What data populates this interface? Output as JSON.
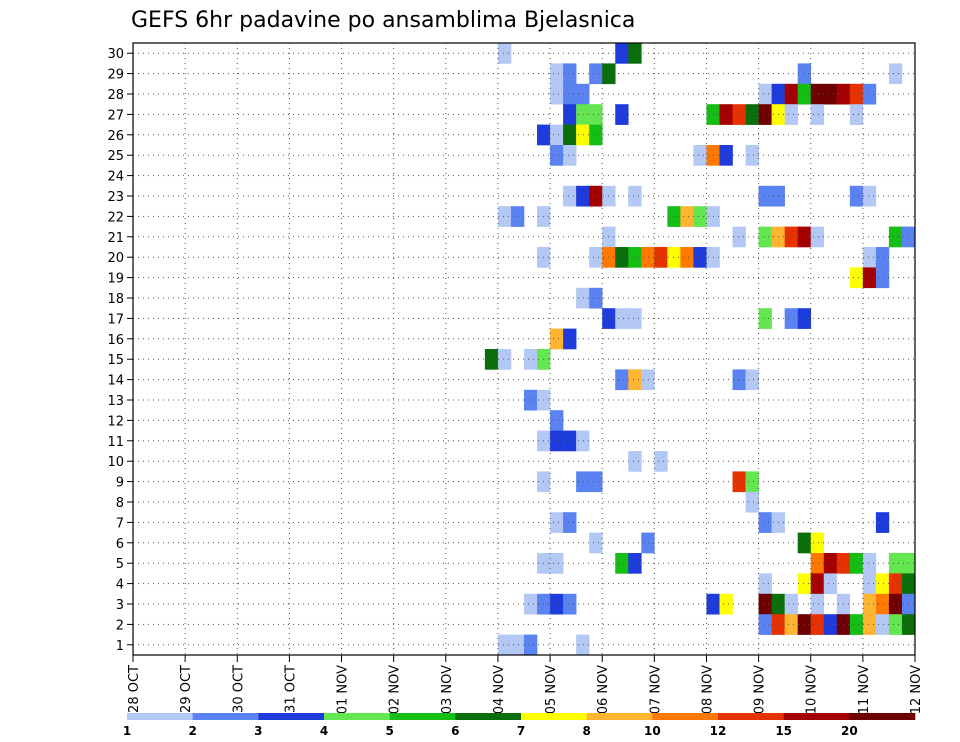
{
  "chart_data": {
    "type": "heatmap",
    "title": "GEFS 6hr padavine po ansamblima Bjelasnica",
    "xlabel": "",
    "ylabel": "",
    "x_ticks": [
      "28 OCT",
      "29 OCT",
      "30 OCT",
      "31 OCT",
      "01 NOV",
      "02 NOV",
      "03 NOV",
      "04 NOV",
      "05 NOV",
      "06 NOV",
      "07 NOV",
      "08 NOV",
      "09 NOV",
      "10 NOV",
      "11 NOV",
      "12 NOV"
    ],
    "x_step_hours": 6,
    "y_ticks": [
      1,
      2,
      3,
      4,
      5,
      6,
      7,
      8,
      9,
      10,
      11,
      12,
      13,
      14,
      15,
      16,
      17,
      18,
      19,
      20,
      21,
      22,
      23,
      24,
      25,
      26,
      27,
      28,
      29,
      30
    ],
    "grid": true,
    "colorbar": {
      "labels": [
        "1",
        "2",
        "3",
        "4",
        "5",
        "6",
        "7",
        "8",
        "10",
        "12",
        "15",
        "20"
      ],
      "colors": [
        "#b4c8f5",
        "#5a82f0",
        "#1e3cdc",
        "#64e650",
        "#14be14",
        "#0a6e0a",
        "#ffff00",
        "#ffb432",
        "#ff7800",
        "#e63200",
        "#a50000",
        "#6e0000"
      ]
    },
    "cells": [
      {
        "member": 30,
        "x": "04 NOV 00",
        "value": 1.5
      },
      {
        "member": 30,
        "x": "06 NOV 06",
        "value": 3.5
      },
      {
        "member": 30,
        "x": "06 NOV 12",
        "value": 6.5
      },
      {
        "member": 29,
        "x": "05 NOV 00",
        "value": 1.5
      },
      {
        "member": 29,
        "x": "05 NOV 06",
        "value": 2.5
      },
      {
        "member": 29,
        "x": "05 NOV 18",
        "value": 2.5
      },
      {
        "member": 29,
        "x": "06 NOV 00",
        "value": 6.5
      },
      {
        "member": 29,
        "x": "09 NOV 18",
        "value": 2.5
      },
      {
        "member": 29,
        "x": "11 NOV 12",
        "value": 1.5
      },
      {
        "member": 28,
        "x": "05 NOV 00",
        "value": 1.5
      },
      {
        "member": 28,
        "x": "05 NOV 06",
        "value": 2.5
      },
      {
        "member": 28,
        "x": "05 NOV 12",
        "value": 2.5
      },
      {
        "member": 28,
        "x": "09 NOV 00",
        "value": 1.5
      },
      {
        "member": 28,
        "x": "09 NOV 06",
        "value": 3.5
      },
      {
        "member": 28,
        "x": "09 NOV 12",
        "value": 17.5
      },
      {
        "member": 28,
        "x": "09 NOV 18",
        "value": 5.5
      },
      {
        "member": 28,
        "x": "10 NOV 00",
        "value": 25
      },
      {
        "member": 28,
        "x": "10 NOV 06",
        "value": 25
      },
      {
        "member": 28,
        "x": "10 NOV 12",
        "value": 17.5
      },
      {
        "member": 28,
        "x": "10 NOV 18",
        "value": 13.5
      },
      {
        "member": 28,
        "x": "11 NOV 00",
        "value": 2.5
      },
      {
        "member": 27,
        "x": "05 NOV 06",
        "value": 3.5
      },
      {
        "member": 27,
        "x": "05 NOV 12",
        "value": 4.5
      },
      {
        "member": 27,
        "x": "05 NOV 18",
        "value": 4.5
      },
      {
        "member": 27,
        "x": "06 NOV 06",
        "value": 3.5
      },
      {
        "member": 27,
        "x": "08 NOV 00",
        "value": 5.5
      },
      {
        "member": 27,
        "x": "08 NOV 06",
        "value": 17.5
      },
      {
        "member": 27,
        "x": "08 NOV 12",
        "value": 13.5
      },
      {
        "member": 27,
        "x": "08 NOV 18",
        "value": 6.5
      },
      {
        "member": 27,
        "x": "09 NOV 00",
        "value": 25
      },
      {
        "member": 27,
        "x": "09 NOV 06",
        "value": 7.5
      },
      {
        "member": 27,
        "x": "09 NOV 12",
        "value": 1.5
      },
      {
        "member": 27,
        "x": "10 NOV 00",
        "value": 1.5
      },
      {
        "member": 27,
        "x": "10 NOV 18",
        "value": 1.5
      },
      {
        "member": 26,
        "x": "04 NOV 18",
        "value": 3.5
      },
      {
        "member": 26,
        "x": "05 NOV 00",
        "value": 1.5
      },
      {
        "member": 26,
        "x": "05 NOV 06",
        "value": 6.5
      },
      {
        "member": 26,
        "x": "05 NOV 12",
        "value": 7.5
      },
      {
        "member": 26,
        "x": "05 NOV 18",
        "value": 5.5
      },
      {
        "member": 25,
        "x": "05 NOV 00",
        "value": 2.5
      },
      {
        "member": 25,
        "x": "05 NOV 06",
        "value": 1.5
      },
      {
        "member": 25,
        "x": "07 NOV 18",
        "value": 1.5
      },
      {
        "member": 25,
        "x": "08 NOV 00",
        "value": 11
      },
      {
        "member": 25,
        "x": "08 NOV 06",
        "value": 3.5
      },
      {
        "member": 25,
        "x": "08 NOV 18",
        "value": 1.5
      },
      {
        "member": 23,
        "x": "05 NOV 06",
        "value": 1.5
      },
      {
        "member": 23,
        "x": "05 NOV 12",
        "value": 3.5
      },
      {
        "member": 23,
        "x": "05 NOV 18",
        "value": 17.5
      },
      {
        "member": 23,
        "x": "06 NOV 00",
        "value": 1.5
      },
      {
        "member": 23,
        "x": "06 NOV 12",
        "value": 1.5
      },
      {
        "member": 23,
        "x": "09 NOV 00",
        "value": 2.5
      },
      {
        "member": 23,
        "x": "09 NOV 06",
        "value": 2.5
      },
      {
        "member": 23,
        "x": "10 NOV 18",
        "value": 2.5
      },
      {
        "member": 23,
        "x": "11 NOV 00",
        "value": 1.5
      },
      {
        "member": 22,
        "x": "04 NOV 00",
        "value": 1.5
      },
      {
        "member": 22,
        "x": "04 NOV 06",
        "value": 2.5
      },
      {
        "member": 22,
        "x": "04 NOV 18",
        "value": 1.5
      },
      {
        "member": 22,
        "x": "07 NOV 06",
        "value": 5.5
      },
      {
        "member": 22,
        "x": "07 NOV 12",
        "value": 9
      },
      {
        "member": 22,
        "x": "07 NOV 18",
        "value": 4.5
      },
      {
        "member": 22,
        "x": "08 NOV 00",
        "value": 1.5
      },
      {
        "member": 21,
        "x": "06 NOV 00",
        "value": 1.5
      },
      {
        "member": 21,
        "x": "08 NOV 12",
        "value": 1.5
      },
      {
        "member": 21,
        "x": "09 NOV 00",
        "value": 4.5
      },
      {
        "member": 21,
        "x": "09 NOV 06",
        "value": 9
      },
      {
        "member": 21,
        "x": "09 NOV 12",
        "value": 13.5
      },
      {
        "member": 21,
        "x": "09 NOV 18",
        "value": 17.5
      },
      {
        "member": 21,
        "x": "10 NOV 00",
        "value": 1.5
      },
      {
        "member": 21,
        "x": "11 NOV 12",
        "value": 5.5
      },
      {
        "member": 21,
        "x": "11 NOV 18",
        "value": 2.5
      },
      {
        "member": 20,
        "x": "04 NOV 18",
        "value": 1.5
      },
      {
        "member": 20,
        "x": "05 NOV 18",
        "value": 1.5
      },
      {
        "member": 20,
        "x": "06 NOV 00",
        "value": 11
      },
      {
        "member": 20,
        "x": "06 NOV 06",
        "value": 6.5
      },
      {
        "member": 20,
        "x": "06 NOV 12",
        "value": 5.5
      },
      {
        "member": 20,
        "x": "06 NOV 18",
        "value": 11
      },
      {
        "member": 20,
        "x": "07 NOV 00",
        "value": 13.5
      },
      {
        "member": 20,
        "x": "07 NOV 06",
        "value": 7.5
      },
      {
        "member": 20,
        "x": "07 NOV 12",
        "value": 11
      },
      {
        "member": 20,
        "x": "07 NOV 18",
        "value": 3.5
      },
      {
        "member": 20,
        "x": "08 NOV 00",
        "value": 1.5
      },
      {
        "member": 20,
        "x": "11 NOV 00",
        "value": 1.5
      },
      {
        "member": 20,
        "x": "11 NOV 06",
        "value": 2.5
      },
      {
        "member": 19,
        "x": "10 NOV 18",
        "value": 7.5
      },
      {
        "member": 19,
        "x": "11 NOV 00",
        "value": 17.5
      },
      {
        "member": 19,
        "x": "11 NOV 06",
        "value": 2.5
      },
      {
        "member": 18,
        "x": "05 NOV 12",
        "value": 1.5
      },
      {
        "member": 18,
        "x": "05 NOV 18",
        "value": 2.5
      },
      {
        "member": 17,
        "x": "06 NOV 00",
        "value": 3.5
      },
      {
        "member": 17,
        "x": "06 NOV 06",
        "value": 1.5
      },
      {
        "member": 17,
        "x": "06 NOV 12",
        "value": 1.5
      },
      {
        "member": 17,
        "x": "09 NOV 00",
        "value": 4.5
      },
      {
        "member": 17,
        "x": "09 NOV 12",
        "value": 2.5
      },
      {
        "member": 17,
        "x": "09 NOV 18",
        "value": 3.5
      },
      {
        "member": 16,
        "x": "05 NOV 00",
        "value": 9
      },
      {
        "member": 16,
        "x": "05 NOV 06",
        "value": 3.5
      },
      {
        "member": 15,
        "x": "03 NOV 18",
        "value": 6.5
      },
      {
        "member": 15,
        "x": "04 NOV 00",
        "value": 1.5
      },
      {
        "member": 15,
        "x": "04 NOV 12",
        "value": 1.5
      },
      {
        "member": 15,
        "x": "04 NOV 18",
        "value": 4.5
      },
      {
        "member": 14,
        "x": "06 NOV 06",
        "value": 2.5
      },
      {
        "member": 14,
        "x": "06 NOV 12",
        "value": 9
      },
      {
        "member": 14,
        "x": "06 NOV 18",
        "value": 1.5
      },
      {
        "member": 14,
        "x": "08 NOV 12",
        "value": 2.5
      },
      {
        "member": 14,
        "x": "08 NOV 18",
        "value": 1.5
      },
      {
        "member": 13,
        "x": "04 NOV 12",
        "value": 2.5
      },
      {
        "member": 13,
        "x": "04 NOV 18",
        "value": 1.5
      },
      {
        "member": 12,
        "x": "05 NOV 00",
        "value": 2.5
      },
      {
        "member": 11,
        "x": "04 NOV 18",
        "value": 1.5
      },
      {
        "member": 11,
        "x": "05 NOV 00",
        "value": 3.5
      },
      {
        "member": 11,
        "x": "05 NOV 06",
        "value": 3.5
      },
      {
        "member": 11,
        "x": "05 NOV 12",
        "value": 1.5
      },
      {
        "member": 10,
        "x": "06 NOV 12",
        "value": 1.5
      },
      {
        "member": 10,
        "x": "07 NOV 00",
        "value": 1.5
      },
      {
        "member": 10,
        "x": "12 NOV 00",
        "value": 5.5
      },
      {
        "member": 9,
        "x": "04 NOV 18",
        "value": 1.5
      },
      {
        "member": 9,
        "x": "05 NOV 12",
        "value": 2.5
      },
      {
        "member": 9,
        "x": "05 NOV 18",
        "value": 2.5
      },
      {
        "member": 9,
        "x": "08 NOV 12",
        "value": 13.5
      },
      {
        "member": 9,
        "x": "08 NOV 18",
        "value": 4.5
      },
      {
        "member": 8,
        "x": "08 NOV 18",
        "value": 1.5
      },
      {
        "member": 8,
        "x": "12 NOV 00",
        "value": 5.5
      },
      {
        "member": 7,
        "x": "05 NOV 00",
        "value": 1.5
      },
      {
        "member": 7,
        "x": "05 NOV 06",
        "value": 2.5
      },
      {
        "member": 7,
        "x": "09 NOV 00",
        "value": 2.5
      },
      {
        "member": 7,
        "x": "09 NOV 06",
        "value": 1.5
      },
      {
        "member": 7,
        "x": "11 NOV 06",
        "value": 3.5
      },
      {
        "member": 6,
        "x": "05 NOV 18",
        "value": 1.5
      },
      {
        "member": 6,
        "x": "06 NOV 18",
        "value": 2.5
      },
      {
        "member": 6,
        "x": "09 NOV 18",
        "value": 6.5
      },
      {
        "member": 6,
        "x": "10 NOV 00",
        "value": 7.5
      },
      {
        "member": 5,
        "x": "04 NOV 18",
        "value": 1.5
      },
      {
        "member": 5,
        "x": "05 NOV 00",
        "value": 1.5
      },
      {
        "member": 5,
        "x": "06 NOV 06",
        "value": 5.5
      },
      {
        "member": 5,
        "x": "06 NOV 12",
        "value": 3.5
      },
      {
        "member": 5,
        "x": "10 NOV 00",
        "value": 11
      },
      {
        "member": 5,
        "x": "10 NOV 06",
        "value": 17.5
      },
      {
        "member": 5,
        "x": "10 NOV 12",
        "value": 13.5
      },
      {
        "member": 5,
        "x": "10 NOV 18",
        "value": 5.5
      },
      {
        "member": 5,
        "x": "11 NOV 00",
        "value": 1.5
      },
      {
        "member": 5,
        "x": "11 NOV 12",
        "value": 4.5
      },
      {
        "member": 5,
        "x": "11 NOV 18",
        "value": 4.5
      },
      {
        "member": 4,
        "x": "09 NOV 00",
        "value": 1.5
      },
      {
        "member": 4,
        "x": "09 NOV 18",
        "value": 7.5
      },
      {
        "member": 4,
        "x": "10 NOV 00",
        "value": 17.5
      },
      {
        "member": 4,
        "x": "10 NOV 06",
        "value": 1.5
      },
      {
        "member": 4,
        "x": "11 NOV 00",
        "value": 1.5
      },
      {
        "member": 4,
        "x": "11 NOV 06",
        "value": 7.5
      },
      {
        "member": 4,
        "x": "11 NOV 12",
        "value": 13.5
      },
      {
        "member": 4,
        "x": "11 NOV 18",
        "value": 6.5
      },
      {
        "member": 4,
        "x": "12 NOV 00",
        "value": 1.5
      },
      {
        "member": 3,
        "x": "04 NOV 12",
        "value": 1.5
      },
      {
        "member": 3,
        "x": "04 NOV 18",
        "value": 2.5
      },
      {
        "member": 3,
        "x": "05 NOV 00",
        "value": 3.5
      },
      {
        "member": 3,
        "x": "05 NOV 06",
        "value": 2.5
      },
      {
        "member": 3,
        "x": "08 NOV 00",
        "value": 3.5
      },
      {
        "member": 3,
        "x": "08 NOV 06",
        "value": 7.5
      },
      {
        "member": 3,
        "x": "09 NOV 00",
        "value": 25
      },
      {
        "member": 3,
        "x": "09 NOV 06",
        "value": 6.5
      },
      {
        "member": 3,
        "x": "09 NOV 12",
        "value": 1.5
      },
      {
        "member": 3,
        "x": "10 NOV 00",
        "value": 1.5
      },
      {
        "member": 3,
        "x": "10 NOV 12",
        "value": 1.5
      },
      {
        "member": 3,
        "x": "11 NOV 00",
        "value": 9
      },
      {
        "member": 3,
        "x": "11 NOV 06",
        "value": 11
      },
      {
        "member": 3,
        "x": "11 NOV 12",
        "value": 25
      },
      {
        "member": 3,
        "x": "11 NOV 18",
        "value": 2.5
      },
      {
        "member": 3,
        "x": "12 NOV 00",
        "value": 25
      },
      {
        "member": 2,
        "x": "09 NOV 00",
        "value": 2.5
      },
      {
        "member": 2,
        "x": "09 NOV 06",
        "value": 13.5
      },
      {
        "member": 2,
        "x": "09 NOV 12",
        "value": 9
      },
      {
        "member": 2,
        "x": "09 NOV 18",
        "value": 25
      },
      {
        "member": 2,
        "x": "10 NOV 00",
        "value": 13.5
      },
      {
        "member": 2,
        "x": "10 NOV 06",
        "value": 3.5
      },
      {
        "member": 2,
        "x": "10 NOV 12",
        "value": 25
      },
      {
        "member": 2,
        "x": "10 NOV 18",
        "value": 5.5
      },
      {
        "member": 2,
        "x": "11 NOV 00",
        "value": 9
      },
      {
        "member": 2,
        "x": "11 NOV 06",
        "value": 1.5
      },
      {
        "member": 2,
        "x": "11 NOV 12",
        "value": 4.5
      },
      {
        "member": 2,
        "x": "11 NOV 18",
        "value": 6.5
      },
      {
        "member": 1,
        "x": "04 NOV 00",
        "value": 1.5
      },
      {
        "member": 1,
        "x": "04 NOV 06",
        "value": 1.5
      },
      {
        "member": 1,
        "x": "04 NOV 12",
        "value": 2.5
      },
      {
        "member": 1,
        "x": "05 NOV 12",
        "value": 1.5
      }
    ]
  }
}
